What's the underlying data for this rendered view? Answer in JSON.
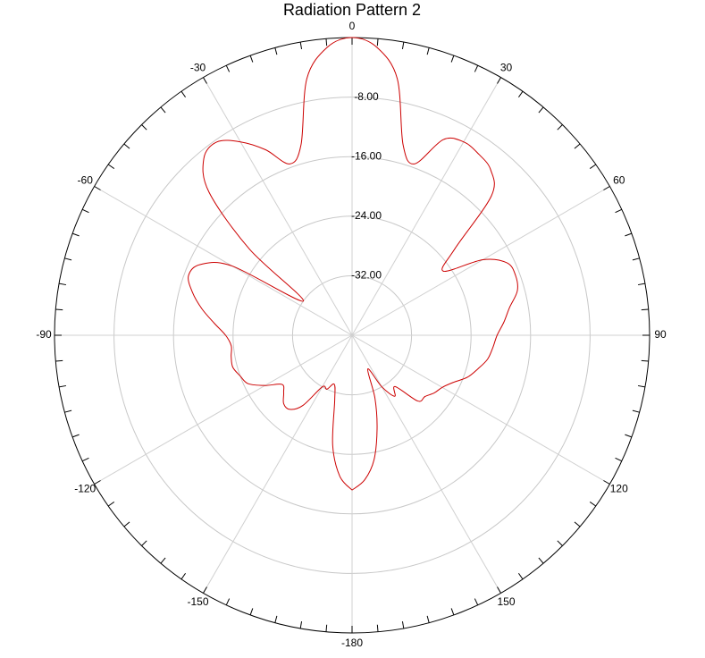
{
  "chart_data": {
    "type": "polar",
    "title": "Radiation Pattern 2",
    "rlim": [
      -40,
      0
    ],
    "rticks": [
      {
        "value": -32,
        "label": "-32.00"
      },
      {
        "value": -24,
        "label": "-24.00"
      },
      {
        "value": -16,
        "label": "-16.00"
      },
      {
        "value": -8,
        "label": "-8.00"
      }
    ],
    "thetaticks": [
      0,
      30,
      60,
      90,
      120,
      150,
      -180,
      -150,
      -120,
      -90,
      -60,
      -30
    ],
    "grid": true,
    "series": [
      {
        "color": "#cc0000",
        "theta": [
          -180,
          -175,
          -170,
          -165,
          -160,
          -155,
          -150,
          -145,
          -140,
          -135,
          -130,
          -125,
          -120,
          -115,
          -110,
          -105,
          -100,
          -95,
          -90,
          -85,
          -80,
          -75,
          -70,
          -65,
          -60,
          -55,
          -50,
          -45,
          -40,
          -35,
          -30,
          -25,
          -20,
          -15,
          -10,
          -5,
          0,
          5,
          10,
          15,
          20,
          25,
          30,
          35,
          40,
          45,
          50,
          55,
          60,
          65,
          70,
          75,
          80,
          85,
          90,
          95,
          100,
          105,
          110,
          115,
          120,
          125,
          130,
          135,
          140,
          145,
          150,
          155,
          160,
          165,
          170,
          175,
          180
        ],
        "values": [
          -19.2,
          -21,
          -25,
          -31,
          -33,
          -32,
          -32,
          -28.5,
          -27,
          -27,
          -28,
          -28.5,
          -26.5,
          -24.6,
          -24,
          -23.4,
          -23.5,
          -23.7,
          -23,
          -21.4,
          -19.5,
          -17.8,
          -16.6,
          -17.5,
          -21.4,
          -32,
          -22,
          -12.8,
          -9,
          -8.3,
          -10,
          -12.5,
          -15.5,
          -13.5,
          -5,
          -1.2,
          0,
          -1.2,
          -5,
          -13.5,
          -15.5,
          -11,
          -10,
          -10.3,
          -11,
          -13.5,
          -22,
          -25,
          -19.7,
          -17,
          -16.6,
          -17,
          -18.5,
          -19.5,
          -20.5,
          -21,
          -21.5,
          -22.5,
          -23.5,
          -25,
          -26,
          -26.5,
          -27.2,
          -27.5,
          -31,
          -30,
          -32,
          -35,
          -31,
          -27,
          -23,
          -20.5,
          -19.2
        ]
      }
    ]
  }
}
